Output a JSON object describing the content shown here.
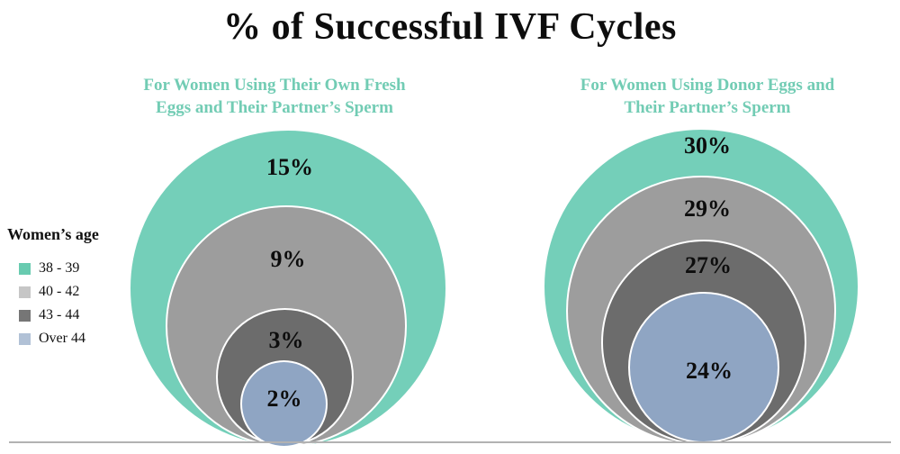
{
  "title": "% of Successful IVF Cycles",
  "legend": {
    "title": "Women’s age",
    "items": [
      {
        "label": "38 - 39",
        "color": "#68cbb0"
      },
      {
        "label": "40 - 42",
        "color": "#c6c6c6"
      },
      {
        "label": "43 - 44",
        "color": "#767676"
      },
      {
        "label": "Over 44",
        "color": "#b1c1d6"
      }
    ]
  },
  "charts": {
    "left": {
      "subtitle_lines": [
        "For Women Using Their Own Fresh",
        "Eggs and Their Partner’s Sperm"
      ],
      "labels": [
        "15%",
        "9%",
        "3%",
        "2%"
      ]
    },
    "right": {
      "subtitle_lines": [
        "For Women Using Donor Eggs and",
        "Their Partner’s Sperm"
      ],
      "labels": [
        "30%",
        "29%",
        "27%",
        "24%"
      ]
    }
  },
  "chart_data": {
    "type": "nested-bubble",
    "title": "% of Successful IVF Cycles",
    "categories": [
      "38 - 39",
      "40 - 42",
      "43 - 44",
      "Over 44"
    ],
    "series": [
      {
        "name": "For Women Using Their Own Fresh Eggs and Their Partner’s Sperm",
        "values": [
          15,
          9,
          3,
          2
        ]
      },
      {
        "name": "For Women Using Donor Eggs and Their Partner’s Sperm",
        "values": [
          30,
          29,
          27,
          24
        ]
      }
    ],
    "value_unit": "%",
    "colors": {
      "38 - 39": "#74cfb9",
      "40 - 42": "#9d9d9d",
      "43 - 44": "#6c6c6c",
      "Over 44": "#8fa5c3"
    },
    "legend_position": "left",
    "subtitle_color": "#72ccb4",
    "baseline_color": "#b2b2b2",
    "layout_note": "Two groups of concentric circles, bottom-tangent to a shared gray baseline; larger value = larger circle"
  }
}
